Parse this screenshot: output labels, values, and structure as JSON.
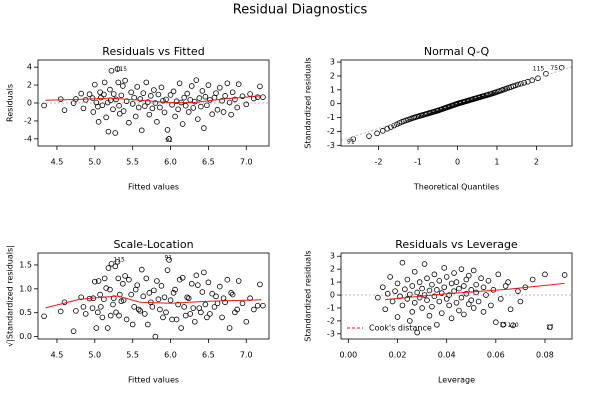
{
  "title": "Residual Diagnostics",
  "chart_data": [
    {
      "type": "scatter",
      "title": "Residuals vs Fitted",
      "xlabel": "Fitted values",
      "ylabel": "Residuals",
      "xlim": [
        4.25,
        7.3
      ],
      "ylim": [
        -4.8,
        4.8
      ],
      "x_ticks": [
        4.5,
        5.0,
        5.5,
        6.0,
        6.5,
        7.0
      ],
      "x_tick_labels": [
        "4.5",
        "5.0",
        "5.5",
        "6.0",
        "6.5",
        "7.0"
      ],
      "y_ticks": [
        -4,
        -2,
        0,
        2,
        4
      ],
      "y_tick_labels": [
        "-4",
        "-2",
        "0",
        "2",
        "4"
      ],
      "reference_line": 0,
      "smoother": [
        [
          4.35,
          0.3
        ],
        [
          4.8,
          0.4
        ],
        [
          5.2,
          0.55
        ],
        [
          5.6,
          0.3
        ],
        [
          6.0,
          0.05
        ],
        [
          6.3,
          0.05
        ],
        [
          6.7,
          0.45
        ],
        [
          7.2,
          0.8
        ]
      ],
      "annotations": [
        {
          "text": "115",
          "x": 5.35,
          "y": 3.75
        },
        {
          "text": "91",
          "x": 5.98,
          "y": -4.2
        }
      ],
      "points": [
        [
          4.33,
          -0.28
        ],
        [
          4.55,
          0.43
        ],
        [
          4.6,
          -0.8
        ],
        [
          4.72,
          -0.02
        ],
        [
          4.75,
          0.45
        ],
        [
          4.82,
          1.05
        ],
        [
          4.85,
          -0.6
        ],
        [
          4.88,
          0.35
        ],
        [
          4.93,
          0.98
        ],
        [
          4.97,
          0.55
        ],
        [
          4.98,
          -1.0
        ],
        [
          5.0,
          2.05
        ],
        [
          5.02,
          0.05
        ],
        [
          5.04,
          -0.4
        ],
        [
          5.05,
          -2.1
        ],
        [
          5.07,
          1.2
        ],
        [
          5.08,
          0.6
        ],
        [
          5.1,
          -0.25
        ],
        [
          5.12,
          0.95
        ],
        [
          5.13,
          2.3
        ],
        [
          5.15,
          -1.6
        ],
        [
          5.17,
          0.05
        ],
        [
          5.18,
          -3.2
        ],
        [
          5.2,
          1.5
        ],
        [
          5.21,
          0.3
        ],
        [
          5.22,
          3.6
        ],
        [
          5.24,
          -0.7
        ],
        [
          5.25,
          1.0
        ],
        [
          5.27,
          -3.35
        ],
        [
          5.28,
          0.4
        ],
        [
          5.3,
          3.8
        ],
        [
          5.31,
          2.3
        ],
        [
          5.32,
          -0.3
        ],
        [
          5.33,
          -1.2
        ],
        [
          5.35,
          0.85
        ],
        [
          5.37,
          1.9
        ],
        [
          5.38,
          -0.9
        ],
        [
          5.4,
          2.5
        ],
        [
          5.42,
          0.2
        ],
        [
          5.45,
          -2.2
        ],
        [
          5.48,
          1.2
        ],
        [
          5.5,
          -0.1
        ],
        [
          5.52,
          0.6
        ],
        [
          5.54,
          -1.5
        ],
        [
          5.56,
          1.8
        ],
        [
          5.58,
          -0.5
        ],
        [
          5.6,
          0.45
        ],
        [
          5.62,
          -3.05
        ],
        [
          5.64,
          1.1
        ],
        [
          5.66,
          -0.35
        ],
        [
          5.68,
          2.3
        ],
        [
          5.7,
          0.1
        ],
        [
          5.72,
          -1.3
        ],
        [
          5.74,
          0.8
        ],
        [
          5.76,
          -0.6
        ],
        [
          5.78,
          1.45
        ],
        [
          5.8,
          0.0
        ],
        [
          5.82,
          -2.1
        ],
        [
          5.84,
          0.95
        ],
        [
          5.86,
          -0.5
        ],
        [
          5.88,
          1.75
        ],
        [
          5.9,
          0.25
        ],
        [
          5.92,
          -1.05
        ],
        [
          5.94,
          0.4
        ],
        [
          5.96,
          -3.0
        ],
        [
          5.98,
          -4.0
        ],
        [
          6.0,
          0.9
        ],
        [
          6.02,
          -0.2
        ],
        [
          6.04,
          1.3
        ],
        [
          6.06,
          -1.5
        ],
        [
          6.08,
          0.2
        ],
        [
          6.1,
          -0.7
        ],
        [
          6.12,
          2.2
        ],
        [
          6.14,
          0.05
        ],
        [
          6.16,
          -2.35
        ],
        [
          6.18,
          0.6
        ],
        [
          6.2,
          -0.3
        ],
        [
          6.22,
          1.05
        ],
        [
          6.24,
          -1.0
        ],
        [
          6.26,
          0.35
        ],
        [
          6.28,
          1.9
        ],
        [
          6.3,
          -0.55
        ],
        [
          6.32,
          0.15
        ],
        [
          6.34,
          2.55
        ],
        [
          6.36,
          -1.8
        ],
        [
          6.38,
          0.55
        ],
        [
          6.4,
          -0.4
        ],
        [
          6.42,
          1.35
        ],
        [
          6.44,
          -2.8
        ],
        [
          6.46,
          0.7
        ],
        [
          6.48,
          -0.25
        ],
        [
          6.5,
          2.0
        ],
        [
          6.52,
          0.35
        ],
        [
          6.55,
          -1.25
        ],
        [
          6.58,
          0.6
        ],
        [
          6.6,
          1.1
        ],
        [
          6.62,
          -0.75
        ],
        [
          6.65,
          1.7
        ],
        [
          6.68,
          0.25
        ],
        [
          6.7,
          -1.0
        ],
        [
          6.72,
          0.8
        ],
        [
          6.75,
          2.2
        ],
        [
          6.78,
          0.05
        ],
        [
          6.8,
          -1.3
        ],
        [
          6.82,
          1.2
        ],
        [
          6.85,
          0.4
        ],
        [
          6.88,
          -0.5
        ],
        [
          6.9,
          2.1
        ],
        [
          6.95,
          0.75
        ],
        [
          7.0,
          -0.15
        ],
        [
          7.05,
          1.0
        ],
        [
          7.1,
          0.5
        ],
        [
          7.15,
          0.65
        ],
        [
          7.18,
          1.85
        ],
        [
          7.22,
          0.65
        ]
      ]
    },
    {
      "type": "scatter",
      "title": "Normal Q-Q",
      "xlabel": "Theoretical Quantiles",
      "ylabel": "Standardized residuals",
      "xlim": [
        -2.95,
        2.9
      ],
      "ylim": [
        -3.05,
        3.15
      ],
      "x_ticks": [
        -2,
        -1,
        0,
        1,
        2
      ],
      "x_tick_labels": [
        "-2",
        "-1",
        "0",
        "1",
        "2"
      ],
      "y_ticks": [
        -3,
        -2,
        -1,
        0,
        1,
        2,
        3
      ],
      "y_tick_labels": [
        "-3",
        "-2",
        "-1",
        "0",
        "1",
        "2",
        "3"
      ],
      "n_points": 120,
      "quantile_curve": [
        [
          -2.6,
          -2.55
        ],
        [
          -2.3,
          -2.4
        ],
        [
          -2.0,
          -2.1
        ],
        [
          -1.7,
          -1.7
        ],
        [
          -1.4,
          -1.3
        ],
        [
          -1.1,
          -1.0
        ],
        [
          -0.8,
          -0.75
        ],
        [
          -0.5,
          -0.5
        ],
        [
          -0.2,
          -0.2
        ],
        [
          0.0,
          0.0
        ],
        [
          0.3,
          0.25
        ],
        [
          0.6,
          0.5
        ],
        [
          0.9,
          0.75
        ],
        [
          1.2,
          1.05
        ],
        [
          1.5,
          1.35
        ],
        [
          1.8,
          1.6
        ],
        [
          2.1,
          1.9
        ],
        [
          2.4,
          2.45
        ],
        [
          2.6,
          2.6
        ]
      ],
      "reference_line": [
        [
          -2.95,
          -2.65
        ],
        [
          2.9,
          2.65
        ]
      ],
      "annotations": [
        {
          "text": "91",
          "x": -2.7,
          "y": -2.75
        },
        {
          "text": "115",
          "x": 2.05,
          "y": 2.5
        },
        {
          "text": "75",
          "x": 2.45,
          "y": 2.55
        }
      ]
    },
    {
      "type": "scatter",
      "title": "Scale-Location",
      "xlabel": "Fitted values",
      "ylabel": "√|Standardized residuals|",
      "xlim": [
        4.25,
        7.3
      ],
      "ylim": [
        -0.05,
        1.75
      ],
      "x_ticks": [
        4.5,
        5.0,
        5.5,
        6.0,
        6.5,
        7.0
      ],
      "x_tick_labels": [
        "4.5",
        "5.0",
        "5.5",
        "6.0",
        "6.5",
        "7.0"
      ],
      "y_ticks": [
        0.0,
        0.5,
        1.0,
        1.5
      ],
      "y_tick_labels": [
        "0.0",
        "0.5",
        "1.0",
        "1.5"
      ],
      "smoother": [
        [
          4.35,
          0.6
        ],
        [
          4.8,
          0.78
        ],
        [
          5.3,
          0.85
        ],
        [
          5.6,
          0.72
        ],
        [
          6.0,
          0.7
        ],
        [
          6.5,
          0.74
        ],
        [
          7.2,
          0.77
        ]
      ],
      "annotations": [
        {
          "text": "91",
          "x": 5.97,
          "y": 1.65
        },
        {
          "text": "115",
          "x": 5.32,
          "y": 1.6
        }
      ]
    },
    {
      "type": "scatter",
      "title": "Residuals vs Leverage",
      "xlabel": "Leverage",
      "ylabel": "Standardized residuals",
      "xlim": [
        -0.003,
        0.091
      ],
      "ylim": [
        -3.4,
        3.25
      ],
      "x_ticks": [
        0.0,
        0.02,
        0.04,
        0.06,
        0.08
      ],
      "x_tick_labels": [
        "0.00",
        "0.02",
        "0.04",
        "0.06",
        "0.08"
      ],
      "y_ticks": [
        -3,
        -2,
        -1,
        0,
        1,
        2,
        3
      ],
      "y_tick_labels": [
        "-3",
        "-2",
        "-1",
        "0",
        "1",
        "2",
        "3"
      ],
      "reference_line": 0,
      "smoother": [
        [
          0.015,
          -0.35
        ],
        [
          0.04,
          0.1
        ],
        [
          0.065,
          0.45
        ],
        [
          0.088,
          0.9
        ]
      ],
      "legend": {
        "label": "Cook's distance",
        "position": "bottom-left"
      },
      "annotations": [
        {
          "text": "15",
          "x": 0.063,
          "y": -2.3
        },
        {
          "text": "120",
          "x": 0.067,
          "y": -2.35
        },
        {
          "text": "17",
          "x": 0.082,
          "y": -2.5
        }
      ],
      "points": [
        [
          0.012,
          -0.2
        ],
        [
          0.014,
          0.6
        ],
        [
          0.015,
          -1.1
        ],
        [
          0.016,
          0.1
        ],
        [
          0.017,
          1.4
        ],
        [
          0.018,
          -0.5
        ],
        [
          0.019,
          0.3
        ],
        [
          0.02,
          -1.7
        ],
        [
          0.02,
          0.9
        ],
        [
          0.021,
          -0.1
        ],
        [
          0.022,
          2.5
        ],
        [
          0.022,
          -0.8
        ],
        [
          0.023,
          0.45
        ],
        [
          0.024,
          -0.3
        ],
        [
          0.024,
          1.2
        ],
        [
          0.025,
          -2.0
        ],
        [
          0.025,
          0.05
        ],
        [
          0.026,
          0.7
        ],
        [
          0.026,
          -1.3
        ],
        [
          0.027,
          1.8
        ],
        [
          0.027,
          -0.6
        ],
        [
          0.028,
          0.2
        ],
        [
          0.028,
          -2.9
        ],
        [
          0.029,
          1.0
        ],
        [
          0.029,
          -0.2
        ],
        [
          0.03,
          0.5
        ],
        [
          0.03,
          -1.0
        ],
        [
          0.031,
          2.4
        ],
        [
          0.031,
          0.0
        ],
        [
          0.032,
          -0.4
        ],
        [
          0.032,
          1.3
        ],
        [
          0.033,
          -1.6
        ],
        [
          0.033,
          0.35
        ],
        [
          0.034,
          0.8
        ],
        [
          0.034,
          -0.9
        ],
        [
          0.035,
          1.6
        ],
        [
          0.035,
          -0.1
        ],
        [
          0.036,
          0.4
        ],
        [
          0.036,
          -2.3
        ],
        [
          0.037,
          1.1
        ],
        [
          0.037,
          -0.5
        ],
        [
          0.038,
          0.15
        ],
        [
          0.038,
          -1.4
        ],
        [
          0.039,
          2.1
        ],
        [
          0.039,
          0.6
        ],
        [
          0.04,
          -0.3
        ],
        [
          0.04,
          1.4
        ],
        [
          0.041,
          -0.8
        ],
        [
          0.041,
          0.0
        ],
        [
          0.042,
          0.9
        ],
        [
          0.042,
          -1.8
        ],
        [
          0.043,
          1.7
        ],
        [
          0.043,
          0.3
        ],
        [
          0.044,
          -0.6
        ],
        [
          0.044,
          1.0
        ],
        [
          0.045,
          -1.2
        ],
        [
          0.045,
          0.5
        ],
        [
          0.046,
          2.0
        ],
        [
          0.046,
          -0.2
        ],
        [
          0.047,
          0.7
        ],
        [
          0.047,
          -1.5
        ],
        [
          0.048,
          1.2
        ],
        [
          0.048,
          0.1
        ],
        [
          0.049,
          -0.7
        ],
        [
          0.049,
          1.5
        ],
        [
          0.05,
          -0.4
        ],
        [
          0.05,
          0.4
        ],
        [
          0.051,
          1.9
        ],
        [
          0.051,
          -1.0
        ],
        [
          0.052,
          0.2
        ],
        [
          0.052,
          0.8
        ],
        [
          0.053,
          -0.5
        ],
        [
          0.054,
          1.3
        ],
        [
          0.055,
          -1.3
        ],
        [
          0.055,
          0.6
        ],
        [
          0.056,
          0.0
        ],
        [
          0.057,
          1.1
        ],
        [
          0.058,
          -0.8
        ],
        [
          0.059,
          0.4
        ],
        [
          0.06,
          -2.1
        ],
        [
          0.061,
          1.6
        ],
        [
          0.062,
          -0.3
        ],
        [
          0.063,
          -2.3
        ],
        [
          0.064,
          0.7
        ],
        [
          0.065,
          1.0
        ],
        [
          0.066,
          -1.1
        ],
        [
          0.067,
          -2.35
        ],
        [
          0.069,
          0.3
        ],
        [
          0.07,
          -0.5
        ],
        [
          0.072,
          0.6
        ],
        [
          0.075,
          1.2
        ],
        [
          0.08,
          1.6
        ],
        [
          0.082,
          -2.5
        ],
        [
          0.088,
          1.55
        ]
      ]
    }
  ]
}
